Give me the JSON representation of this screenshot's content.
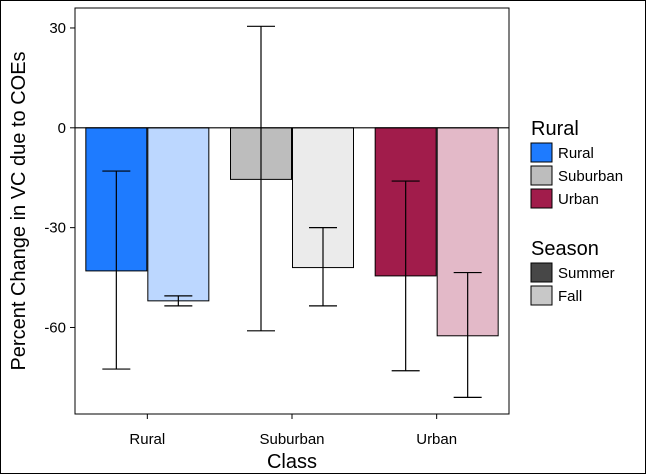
{
  "chart_data": {
    "type": "bar",
    "title": "",
    "xlabel": "Class",
    "ylabel": "Percent Change in VC due to COEs",
    "categories": [
      "Rural",
      "Suburban",
      "Urban"
    ],
    "ylim": [
      -86,
      36
    ],
    "yticks": [
      30,
      0,
      -30,
      -60
    ],
    "ytick_labels": [
      "30",
      "0",
      "-30",
      "-60"
    ],
    "grid": false,
    "legend_position": "right",
    "series": [
      {
        "name": "Summer",
        "values": [
          -43,
          -15.5,
          -44.5
        ],
        "err_low": [
          -72.5,
          -61,
          -73
        ],
        "err_high": [
          -13,
          30.5,
          -16
        ],
        "colors": [
          "#1e7bff",
          "#bdbdbd",
          "#a11c4b"
        ]
      },
      {
        "name": "Fall",
        "values": [
          -52,
          -42,
          -62.5
        ],
        "err_low": [
          -53.5,
          -53.5,
          -81
        ],
        "err_high": [
          -50.5,
          -30,
          -43.5
        ],
        "colors": [
          "#bcd7ff",
          "#ebebeb",
          "#e3b9c8"
        ]
      }
    ],
    "legend": {
      "color_title": "Rural",
      "color_items": [
        {
          "label": "Rural",
          "color": "#1e7bff"
        },
        {
          "label": "Suburban",
          "color": "#bdbdbd"
        },
        {
          "label": "Urban",
          "color": "#a11c4b"
        }
      ],
      "season_title": "Season",
      "season_items": [
        {
          "label": "Summer",
          "color": "#474747"
        },
        {
          "label": "Fall",
          "color": "#c8c8c8"
        }
      ]
    }
  }
}
